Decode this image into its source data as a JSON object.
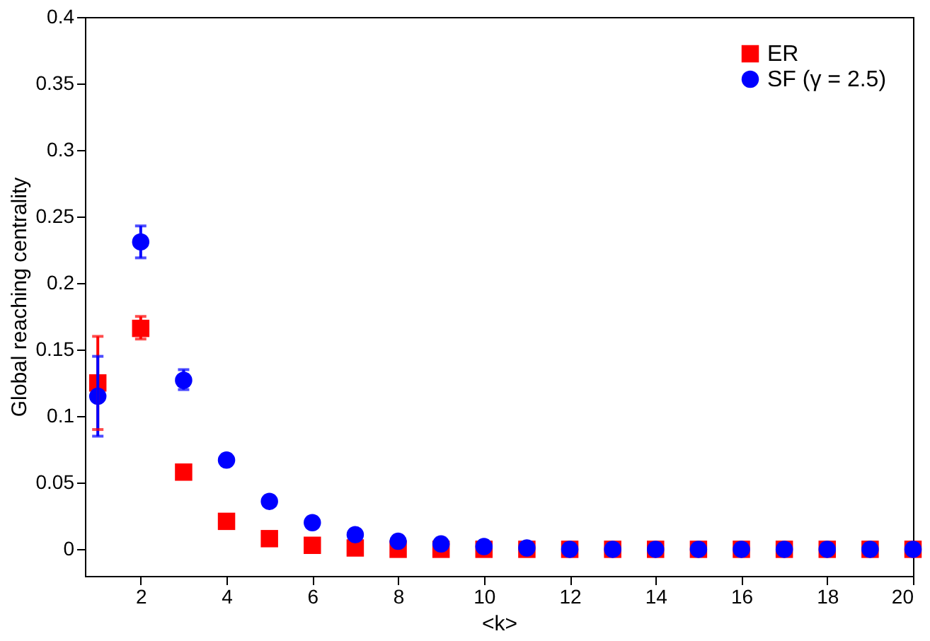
{
  "chart_data": {
    "type": "scatter",
    "xlabel": "<k>",
    "ylabel": "Global reaching centrality",
    "x": [
      1,
      2,
      3,
      4,
      5,
      6,
      7,
      8,
      9,
      10,
      11,
      12,
      13,
      14,
      15,
      16,
      17,
      18,
      19,
      20
    ],
    "series": [
      {
        "name": "ER",
        "color": "#ff0000",
        "marker": "square",
        "values": [
          0.125,
          0.166,
          0.058,
          0.021,
          0.008,
          0.003,
          0.001,
          0,
          0,
          0,
          0,
          0,
          0,
          0,
          0,
          0,
          0,
          0,
          0,
          0
        ],
        "errors": [
          [
            0.09,
            0.16
          ],
          [
            0.158,
            0.175
          ],
          null,
          null,
          null,
          null,
          null,
          null,
          null,
          null,
          null,
          null,
          null,
          null,
          null,
          null,
          null,
          null,
          null,
          null
        ]
      },
      {
        "name": "SF (γ = 2.5)",
        "color": "#0000ff",
        "marker": "circle",
        "values": [
          0.115,
          0.231,
          0.127,
          0.067,
          0.036,
          0.02,
          0.011,
          0.006,
          0.004,
          0.002,
          0.001,
          0,
          0,
          0,
          0,
          0,
          0,
          0,
          0,
          0
        ],
        "errors": [
          [
            0.085,
            0.145
          ],
          [
            0.219,
            0.243
          ],
          [
            0.12,
            0.135
          ],
          [
            0.063,
            0.071
          ],
          null,
          null,
          null,
          null,
          null,
          null,
          null,
          null,
          null,
          null,
          null,
          null,
          null,
          null,
          null,
          null
        ]
      }
    ],
    "xlim": [
      0.7,
      20
    ],
    "xticks": [
      2,
      4,
      6,
      8,
      10,
      12,
      14,
      16,
      18,
      20
    ],
    "ylim": [
      -0.02,
      0.4
    ],
    "yticks": [
      0,
      0.05,
      0.1,
      0.15,
      0.2,
      0.25,
      0.3,
      0.35,
      0.4
    ],
    "grid": false,
    "legend": "top right"
  }
}
